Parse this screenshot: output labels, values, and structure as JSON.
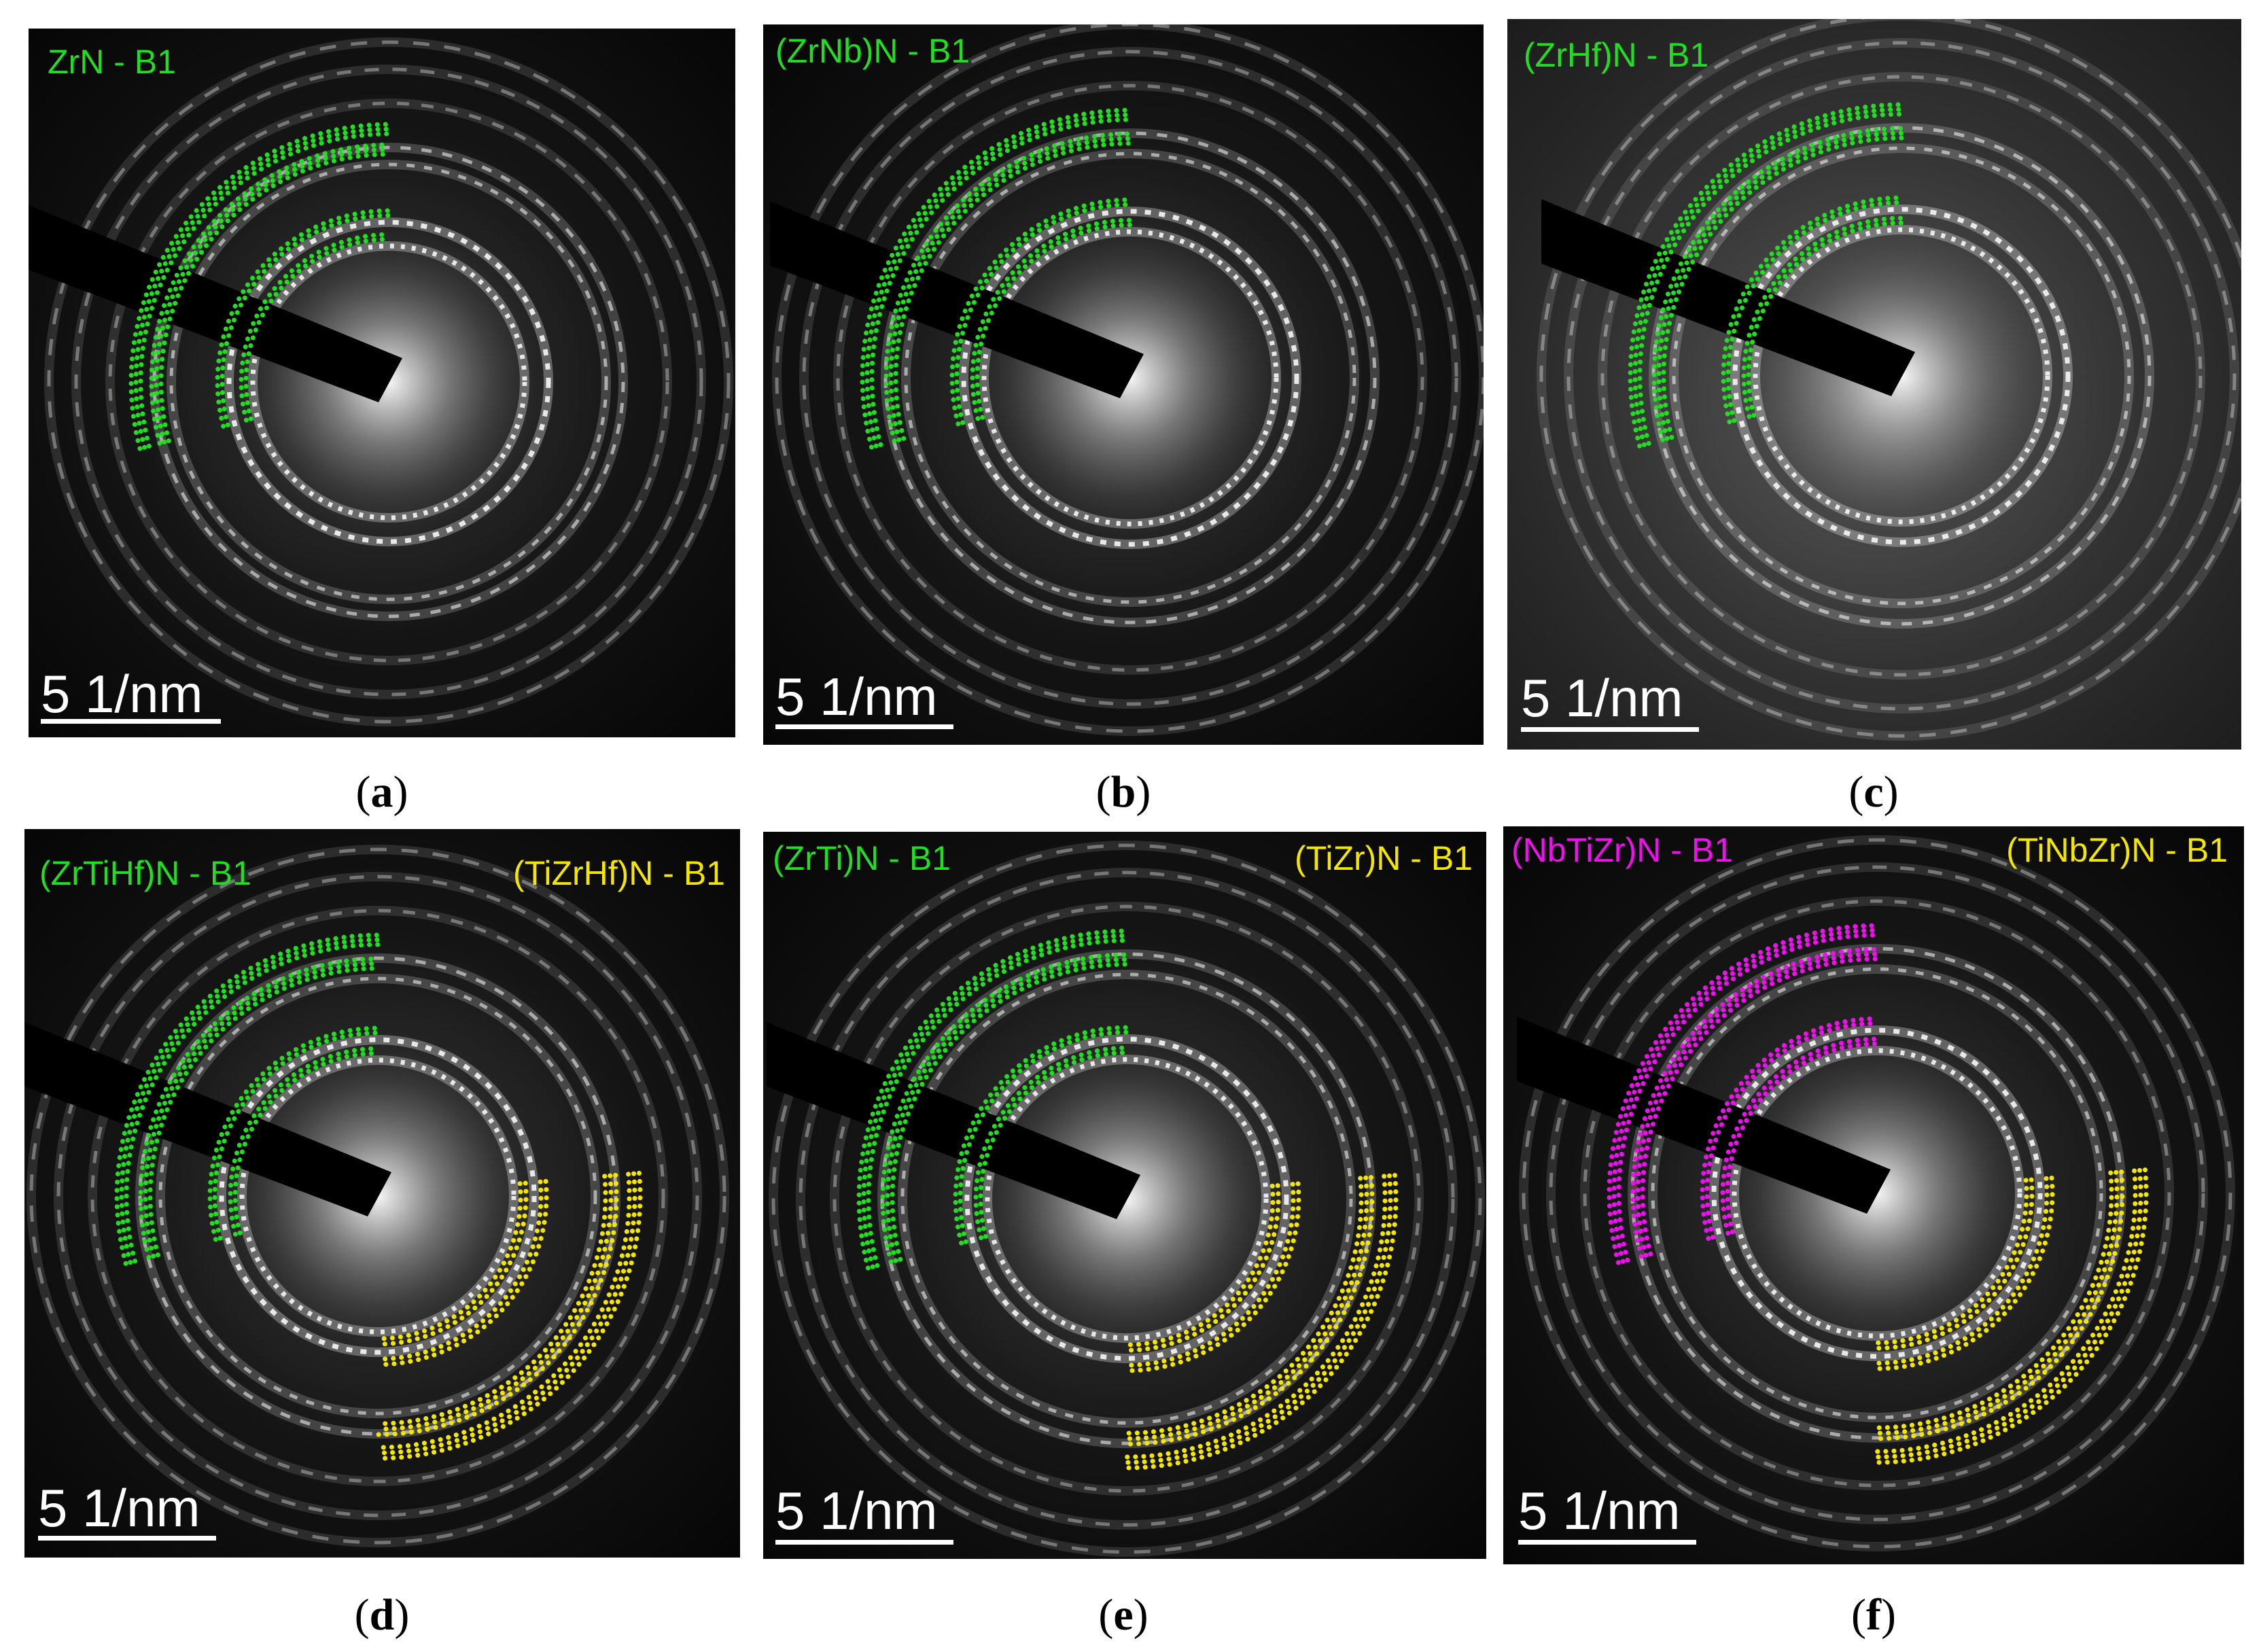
{
  "panels": [
    {
      "id": "a",
      "caption_letter": "a",
      "labels": [
        {
          "text": "ZrN - B1",
          "color": "#22dd22"
        }
      ],
      "scale_text": "5 1/nm",
      "arc_colors": [
        "#22dd22"
      ]
    },
    {
      "id": "b",
      "caption_letter": "b",
      "labels": [
        {
          "text": "(ZrNb)N - B1",
          "color": "#22dd22"
        }
      ],
      "scale_text": "5 1/nm",
      "arc_colors": [
        "#22dd22"
      ]
    },
    {
      "id": "c",
      "caption_letter": "c",
      "labels": [
        {
          "text": "(ZrHf)N - B1",
          "color": "#22dd22"
        }
      ],
      "scale_text": "5 1/nm",
      "arc_colors": [
        "#22dd22"
      ]
    },
    {
      "id": "d",
      "caption_letter": "d",
      "labels": [
        {
          "text": "(ZrTiHf)N - B1",
          "color": "#22dd22"
        },
        {
          "text": "(TiZrHf)N - B1",
          "color": "#f5e600"
        }
      ],
      "scale_text": "5 1/nm",
      "arc_colors": [
        "#22dd22",
        "#f5e600"
      ]
    },
    {
      "id": "e",
      "caption_letter": "e",
      "labels": [
        {
          "text": "(ZrTi)N - B1",
          "color": "#22dd22"
        },
        {
          "text": "(TiZr)N - B1",
          "color": "#f5e600"
        }
      ],
      "scale_text": "5 1/nm",
      "arc_colors": [
        "#22dd22",
        "#f5e600"
      ]
    },
    {
      "id": "f",
      "caption_letter": "f",
      "labels": [
        {
          "text": "(NbTiZr)N - B1",
          "color": "#ee11ee"
        },
        {
          "text": "(TiNbZr)N - B1",
          "color": "#f5e600"
        }
      ],
      "scale_text": "5 1/nm",
      "arc_colors": [
        "#ee11ee",
        "#f5e600"
      ]
    }
  ]
}
